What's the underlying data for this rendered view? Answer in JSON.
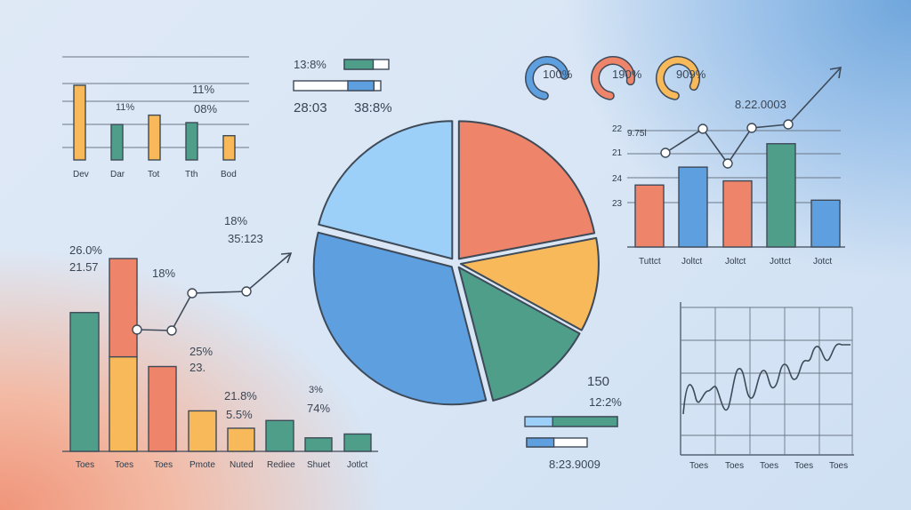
{
  "colors": {
    "orange": "#f7b95a",
    "teal": "#4e9e8a",
    "coral": "#ee8469",
    "blue": "#5e9fe0",
    "lightblue": "#9dd0f8",
    "outline": "#3f4a58"
  },
  "top_left_chart": {
    "labels": [
      "11%",
      "11%",
      "08%"
    ],
    "categories": [
      "Dev",
      "Dar",
      "Tot",
      "Tth",
      "Bod"
    ],
    "values": [
      80,
      38,
      48,
      40,
      26
    ],
    "colors": [
      "orange",
      "teal",
      "orange",
      "teal",
      "orange"
    ]
  },
  "top_center_stats": {
    "stat1": "13:8%",
    "stat2": "28:03",
    "stat3": "38:8%",
    "progress1": 0.35,
    "progress2": 0.35
  },
  "gauges": [
    {
      "label": "100%",
      "color": "blue",
      "value": 0.7
    },
    {
      "label": "190%",
      "color": "coral",
      "value": 0.75
    },
    {
      "label": "909%",
      "color": "orange",
      "value": 0.8
    }
  ],
  "top_right_chart": {
    "header_value": "8.22.0003",
    "side_label": "9.75l",
    "ytick_labels": [
      "22",
      "21",
      "24",
      "23"
    ],
    "categories": [
      "Tuttct",
      "Joltct",
      "Joltct",
      "Jottct",
      "Jotct"
    ],
    "bar_values": [
      0.45,
      0.58,
      0.48,
      0.75,
      0.34
    ],
    "bar_colors": [
      "coral",
      "blue",
      "coral",
      "teal",
      "blue"
    ],
    "line_values": [
      0.1,
      0.3,
      0.05,
      0.3,
      0.4
    ]
  },
  "pie_chart": {
    "slices": [
      {
        "value": 22,
        "color": "coral"
      },
      {
        "value": 11,
        "color": "orange"
      },
      {
        "value": 13,
        "color": "teal"
      },
      {
        "value": 33,
        "color": "blue"
      },
      {
        "value": 21,
        "color": "lightblue"
      }
    ]
  },
  "bottom_left_chart": {
    "labels": {
      "a": "18%",
      "b": "35:123",
      "c": "26.0%",
      "d": "21.57",
      "e": "18%",
      "f": "25%",
      "g": "23.",
      "h": "21.8%",
      "i": "5.5%",
      "j": "3%",
      "k": "74%"
    },
    "categories": [
      "Toes",
      "Toes",
      "Toes",
      "Pmote",
      "Nuted",
      "Rediee",
      "Shuet",
      "Jotlct"
    ],
    "values": [
      0.72,
      1.0,
      0.44,
      0.21,
      0.12,
      0.16,
      0.07,
      0.09
    ],
    "stack_split": 0.49,
    "colors": [
      "teal",
      "coral",
      "coral",
      "orange",
      "orange",
      "teal",
      "teal",
      "teal"
    ]
  },
  "bottom_center_stats": {
    "stat1": "150",
    "stat2": "12:2%",
    "stat3": "8:23.9009",
    "progress1": 0.7,
    "progress2": 0.45
  },
  "bottom_right_chart": {
    "categories": [
      "Toes",
      "Toes",
      "Toes",
      "Toes",
      "Toes"
    ]
  }
}
